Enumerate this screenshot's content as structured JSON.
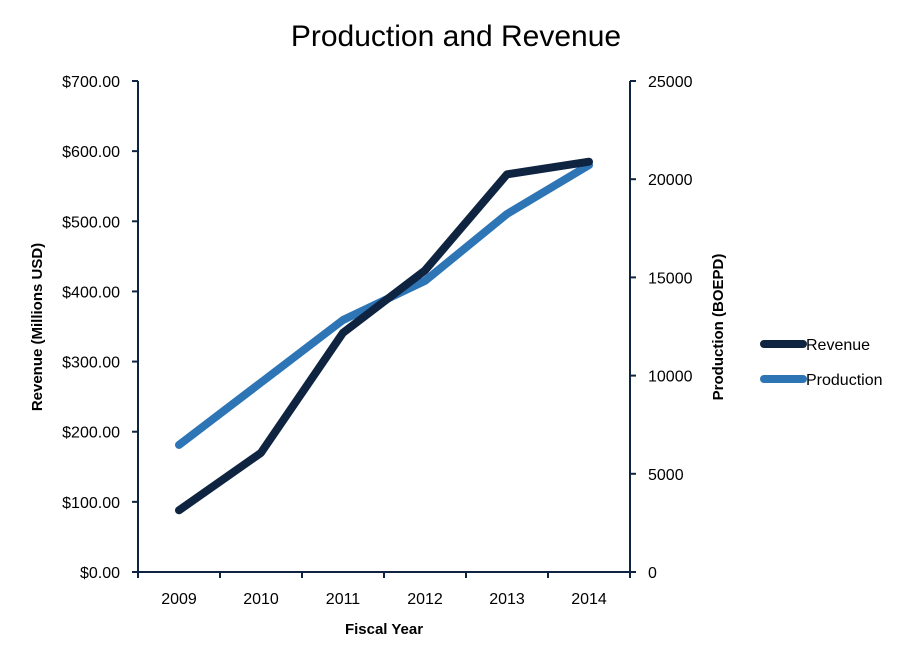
{
  "chart_data": {
    "type": "line",
    "title": "Production and Revenue",
    "xlabel": "Fiscal Year",
    "ylabel": "Revenue (Millions USD)",
    "y2label": "Production (BOEPD)",
    "categories": [
      "2009",
      "2010",
      "2011",
      "2012",
      "2013",
      "2014"
    ],
    "ylim": [
      0,
      700
    ],
    "y_ticks": [
      0,
      100,
      200,
      300,
      400,
      500,
      600,
      700
    ],
    "y_tick_labels": [
      "$0.00",
      "$100.00",
      "$200.00",
      "$300.00",
      "$400.00",
      "$500.00",
      "$600.00",
      "$700.00"
    ],
    "y2lim": [
      0,
      25000
    ],
    "y2_ticks": [
      0,
      5000,
      10000,
      15000,
      20000,
      25000
    ],
    "y2_tick_labels": [
      "0",
      "5000",
      "10000",
      "15000",
      "20000",
      "25000"
    ],
    "grid": false,
    "legend_position": "right",
    "series": [
      {
        "name": "Revenue",
        "axis": "left",
        "color": "#0f2440",
        "values": [
          88,
          170,
          341,
          430,
          567,
          585
        ]
      },
      {
        "name": "Production",
        "axis": "right",
        "color": "#2e75b6",
        "values": [
          6470,
          9650,
          12830,
          14820,
          18230,
          20720
        ]
      }
    ]
  },
  "colors": {
    "axis": "#0f2440"
  }
}
